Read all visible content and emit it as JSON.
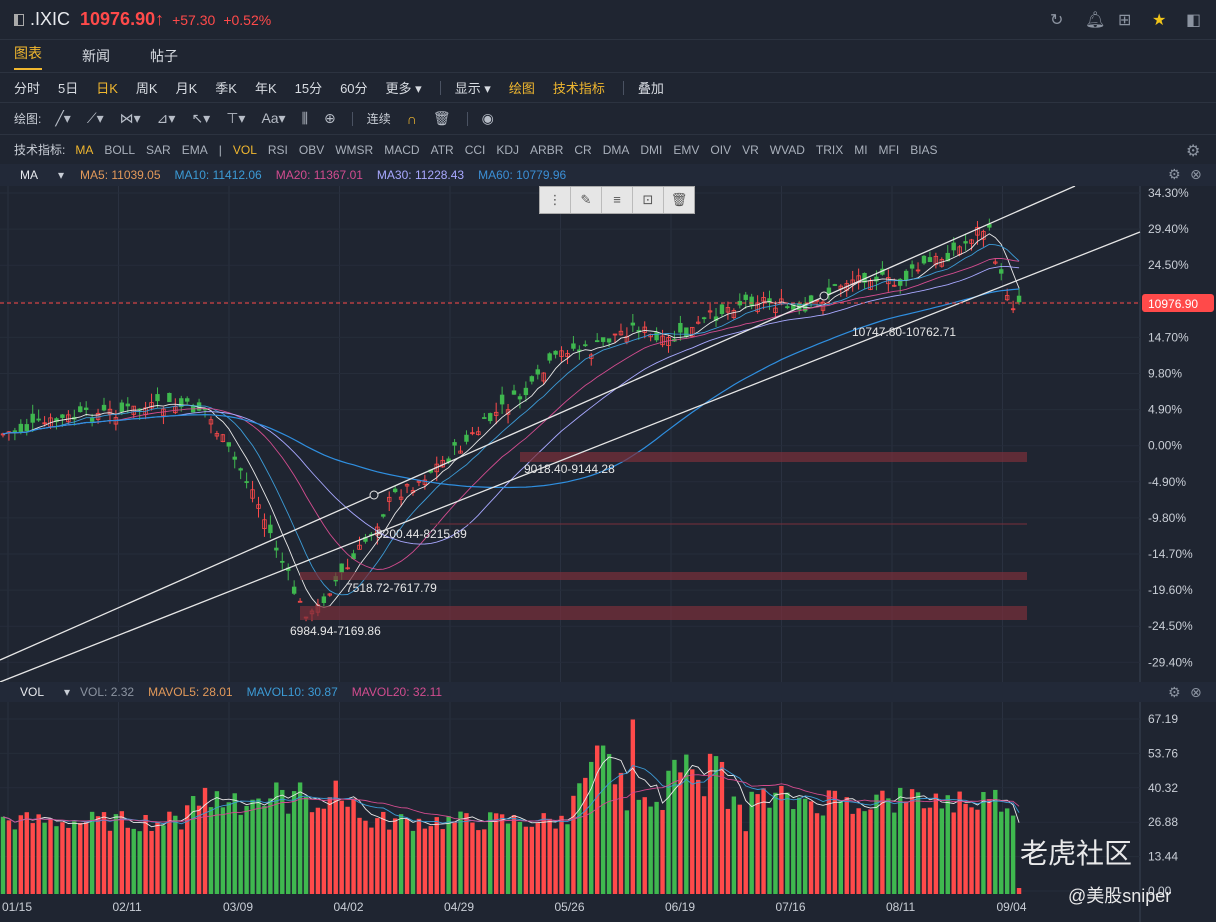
{
  "header": {
    "symbol": ".IXIC",
    "price": "10976.90↑",
    "change": "+57.30",
    "change_pct": "+0.52%"
  },
  "tabs": [
    "图表",
    "新闻",
    "帖子"
  ],
  "periods": [
    "分时",
    "5日",
    "日K",
    "周K",
    "月K",
    "季K",
    "年K",
    "15分",
    "60分",
    "更多 ▾"
  ],
  "display": {
    "show": "显示 ▾",
    "draw": "绘图",
    "tech": "技术指标",
    "overlay": "叠加"
  },
  "drawbar": {
    "label": "绘图:",
    "continuous": "连续"
  },
  "indicators": {
    "label": "技术指标:",
    "items": [
      "MA",
      "BOLL",
      "SAR",
      "EMA",
      "|",
      "VOL",
      "RSI",
      "OBV",
      "WMSR",
      "MACD",
      "ATR",
      "CCI",
      "KDJ",
      "ARBR",
      "CR",
      "DMA",
      "DMI",
      "EMV",
      "OIV",
      "VR",
      "WVAD",
      "TRIX",
      "MI",
      "MFI",
      "BIAS"
    ]
  },
  "ma": {
    "name": "MA",
    "ma5": "MA5: 11039.05",
    "ma10": "MA10: 11412.06",
    "ma20": "MA20: 11367.01",
    "ma30": "MA30: 11228.43",
    "ma60": "MA60: 10779.96"
  },
  "vol": {
    "name": "VOL",
    "vol": "VOL: 2.32",
    "mavol5": "MAVOL5: 28.01",
    "mavol10": "MAVOL10: 30.87",
    "mavol20": "MAVOL20: 32.11"
  },
  "colors": {
    "up": "#ff4a4a",
    "down": "#3fb84f",
    "ma5": "#e2995a",
    "ma10": "#3c9bd6",
    "ma20": "#d24c8f",
    "ma30": "#a8a8ff",
    "ma60": "#3b8fd6"
  },
  "chart_data": {
    "type": "candlestick",
    "pct_axis": [
      "34.30%",
      "29.40%",
      "24.50%",
      "19.60%",
      "14.70%",
      "9.80%",
      "4.90%",
      "0.00%",
      "-4.90%",
      "-9.80%",
      "-14.70%",
      "-19.60%",
      "-24.50%",
      "-29.40%"
    ],
    "vol_axis": [
      "67.19",
      "53.76",
      "40.32",
      "26.88",
      "13.44",
      "0.00"
    ],
    "x_labels": [
      "01/15",
      "02/11",
      "03/09",
      "04/02",
      "04/29",
      "05/26",
      "06/19",
      "07/16",
      "08/11",
      "09/04"
    ],
    "last_price_tag": "10976.90",
    "annotations": [
      "10747.80-10762.71",
      "9018.40-9144.28",
      "8200.44-8215.69",
      "7518.72-7617.79",
      "6984.94-7169.86"
    ]
  },
  "watermark": {
    "brand": "老虎社区",
    "user": "@美股sniper"
  }
}
